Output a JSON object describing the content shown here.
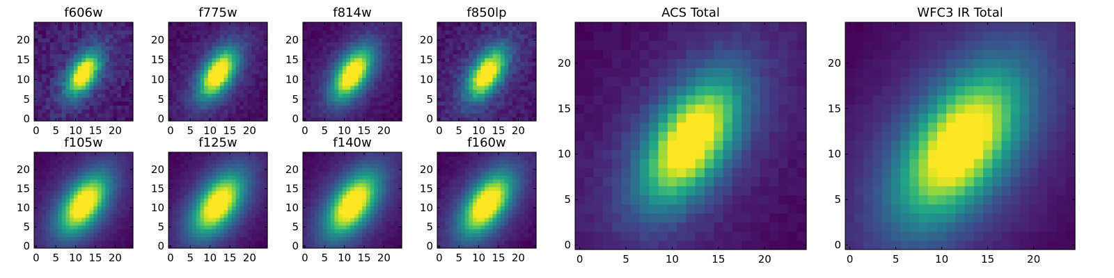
{
  "chart_data": {
    "type": "heatmap",
    "colormap": "viridis",
    "shared_axes": {
      "grid_size": [
        25,
        25
      ],
      "xlim": [
        -0.5,
        24.5
      ],
      "ylim": [
        -0.5,
        24.5
      ],
      "origin": "lower"
    },
    "panels": [
      {
        "title": "f606w",
        "xticks": [
          0,
          5,
          10,
          15,
          20
        ],
        "yticks": [
          0,
          5,
          10,
          15,
          20
        ],
        "source": {
          "cx": 12,
          "cy": 11.5,
          "sigma_major": 4.2,
          "sigma_minor": 2.2,
          "angle_deg": 58,
          "background": 0.05,
          "noise": 0.07,
          "halo": 0.13,
          "seed": 11
        }
      },
      {
        "title": "f775w",
        "xticks": [
          0,
          5,
          10,
          15,
          20
        ],
        "yticks": [
          0,
          5,
          10,
          15,
          20
        ],
        "source": {
          "cx": 12,
          "cy": 11.5,
          "sigma_major": 4.6,
          "sigma_minor": 2.4,
          "angle_deg": 58,
          "background": 0.07,
          "noise": 0.04,
          "halo": 0.18,
          "seed": 23
        }
      },
      {
        "title": "f814w",
        "xticks": [
          0,
          5,
          10,
          15,
          20
        ],
        "yticks": [
          0,
          5,
          10,
          15,
          20
        ],
        "source": {
          "cx": 12,
          "cy": 11.5,
          "sigma_major": 4.8,
          "sigma_minor": 2.5,
          "angle_deg": 58,
          "background": 0.07,
          "noise": 0.035,
          "halo": 0.2,
          "seed": 37
        }
      },
      {
        "title": "f850lp",
        "xticks": [
          0,
          5,
          10,
          15,
          20
        ],
        "yticks": [
          0,
          5,
          10,
          15,
          20
        ],
        "source": {
          "cx": 12,
          "cy": 11.5,
          "sigma_major": 4.6,
          "sigma_minor": 2.4,
          "angle_deg": 58,
          "background": 0.06,
          "noise": 0.06,
          "halo": 0.17,
          "seed": 41
        }
      },
      {
        "title": "f105w",
        "xticks": [
          0,
          5,
          10,
          15,
          20
        ],
        "yticks": [
          0,
          5,
          10,
          15,
          20
        ],
        "source": {
          "cx": 12,
          "cy": 11,
          "sigma_major": 5.6,
          "sigma_minor": 3.0,
          "angle_deg": 56,
          "background": 0.08,
          "noise": 0.02,
          "halo": 0.26,
          "seed": 53
        }
      },
      {
        "title": "f125w",
        "xticks": [
          0,
          5,
          10,
          15,
          20
        ],
        "yticks": [
          0,
          5,
          10,
          15,
          20
        ],
        "source": {
          "cx": 12,
          "cy": 11,
          "sigma_major": 5.8,
          "sigma_minor": 3.1,
          "angle_deg": 56,
          "background": 0.08,
          "noise": 0.02,
          "halo": 0.28,
          "seed": 67
        }
      },
      {
        "title": "f140w",
        "xticks": [
          0,
          5,
          10,
          15,
          20
        ],
        "yticks": [
          0,
          5,
          10,
          15,
          20
        ],
        "source": {
          "cx": 12,
          "cy": 11,
          "sigma_major": 5.9,
          "sigma_minor": 3.1,
          "angle_deg": 56,
          "background": 0.08,
          "noise": 0.02,
          "halo": 0.28,
          "seed": 71
        }
      },
      {
        "title": "f160w",
        "xticks": [
          0,
          5,
          10,
          15,
          20
        ],
        "yticks": [
          0,
          5,
          10,
          15,
          20
        ],
        "source": {
          "cx": 12,
          "cy": 11,
          "sigma_major": 5.8,
          "sigma_minor": 3.0,
          "angle_deg": 56,
          "background": 0.07,
          "noise": 0.025,
          "halo": 0.27,
          "seed": 83
        }
      },
      {
        "title": "ACS Total",
        "xticks": [
          0,
          5,
          10,
          15,
          20
        ],
        "yticks": [
          0,
          5,
          10,
          15,
          20
        ],
        "source": {
          "cx": 12,
          "cy": 11.5,
          "sigma_major": 5.0,
          "sigma_minor": 2.6,
          "angle_deg": 58,
          "background": 0.07,
          "noise": 0.025,
          "halo": 0.2,
          "seed": 97
        }
      },
      {
        "title": "WFC3 IR Total",
        "xticks": [
          0,
          5,
          10,
          15,
          20
        ],
        "yticks": [
          0,
          5,
          10,
          15,
          20
        ],
        "source": {
          "cx": 12,
          "cy": 11,
          "sigma_major": 6.0,
          "sigma_minor": 3.2,
          "angle_deg": 56,
          "background": 0.07,
          "noise": 0.015,
          "halo": 0.28,
          "seed": 101
        }
      }
    ]
  }
}
